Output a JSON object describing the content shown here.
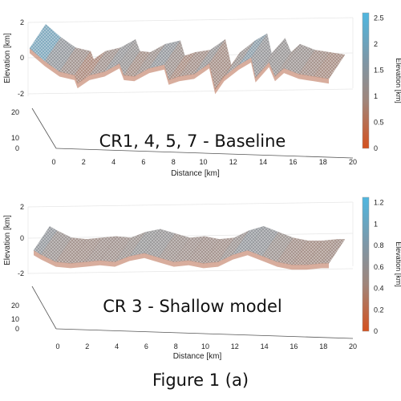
{
  "caption": "Figure 1 (a)",
  "chart_data": [
    {
      "type": "surface",
      "title": "CR1, 4, 5, 7 - Baseline",
      "xlabel": "Distance [km]",
      "ylabel": "",
      "zlabel": "Elevation [km]",
      "x_ticks": [
        "0",
        "2",
        "4",
        "6",
        "8",
        "10",
        "12",
        "14",
        "16",
        "18",
        "20"
      ],
      "y_ticks": [
        "0",
        "10",
        "20"
      ],
      "z_ticks": [
        "-2",
        "0",
        "2"
      ],
      "xlim": [
        0,
        20
      ],
      "ylim": [
        0,
        20
      ],
      "zlim": [
        -2.5,
        2.5
      ],
      "colorbar": {
        "label": "Elevation [km]",
        "ticks": [
          "0",
          "0.5",
          "1",
          "1.5",
          "2",
          "2.5"
        ],
        "range": [
          0,
          2.6
        ],
        "colors": [
          "#d4511e",
          "#a0857a",
          "#7d97a7",
          "#4fb7e0"
        ]
      },
      "profile": {
        "x": [
          0,
          1,
          2,
          3,
          3.2,
          4,
          5,
          6,
          6.3,
          7,
          8,
          9,
          9.3,
          10,
          11,
          12,
          12.4,
          13,
          14,
          14.8,
          15.1,
          16,
          16.4,
          17,
          18,
          19,
          20
        ],
        "z": [
          2.0,
          0.9,
          0.0,
          -0.3,
          -1.0,
          -0.3,
          0.0,
          0.7,
          -0.3,
          -0.4,
          0.3,
          0.6,
          -0.7,
          -0.4,
          -0.2,
          0.7,
          -1.5,
          -0.4,
          0.6,
          1.2,
          -0.5,
          0.8,
          -0.4,
          0.3,
          -0.2,
          -0.4,
          -0.6
        ]
      }
    },
    {
      "type": "surface",
      "title": "CR 3 - Shallow model",
      "xlabel": "Distance [km]",
      "ylabel": "",
      "zlabel": "Elevation [km]",
      "x_ticks": [
        "0",
        "2",
        "4",
        "6",
        "8",
        "10",
        "12",
        "14",
        "16",
        "18",
        "20"
      ],
      "y_ticks": [
        "0",
        "10",
        "20"
      ],
      "z_ticks": [
        "-2",
        "0",
        "2"
      ],
      "xlim": [
        0,
        20
      ],
      "ylim": [
        0,
        20
      ],
      "zlim": [
        -2.5,
        2.5
      ],
      "colorbar": {
        "label": "Elevation [km]",
        "ticks": [
          "0",
          "0.2",
          "0.4",
          "0.6",
          "0.8",
          "1",
          "1.2"
        ],
        "range": [
          0,
          1.25
        ],
        "colors": [
          "#d4511e",
          "#a0857a",
          "#7d97a7",
          "#4fb7e0"
        ]
      },
      "profile": {
        "x": [
          0,
          0.5,
          1.5,
          2.5,
          3.5,
          4.5,
          5.5,
          6.5,
          7.5,
          8.5,
          9.5,
          10.5,
          11.5,
          12.5,
          13.5,
          14.5,
          15.5,
          16.5,
          17.5,
          18.5,
          19.5,
          20
        ],
        "z": [
          0.6,
          0.3,
          -0.2,
          -0.3,
          -0.2,
          -0.1,
          -0.2,
          0.2,
          0.4,
          0.1,
          -0.2,
          -0.1,
          -0.3,
          -0.2,
          0.3,
          0.6,
          0.2,
          -0.2,
          -0.4,
          -0.4,
          -0.3,
          -0.3
        ]
      }
    }
  ]
}
